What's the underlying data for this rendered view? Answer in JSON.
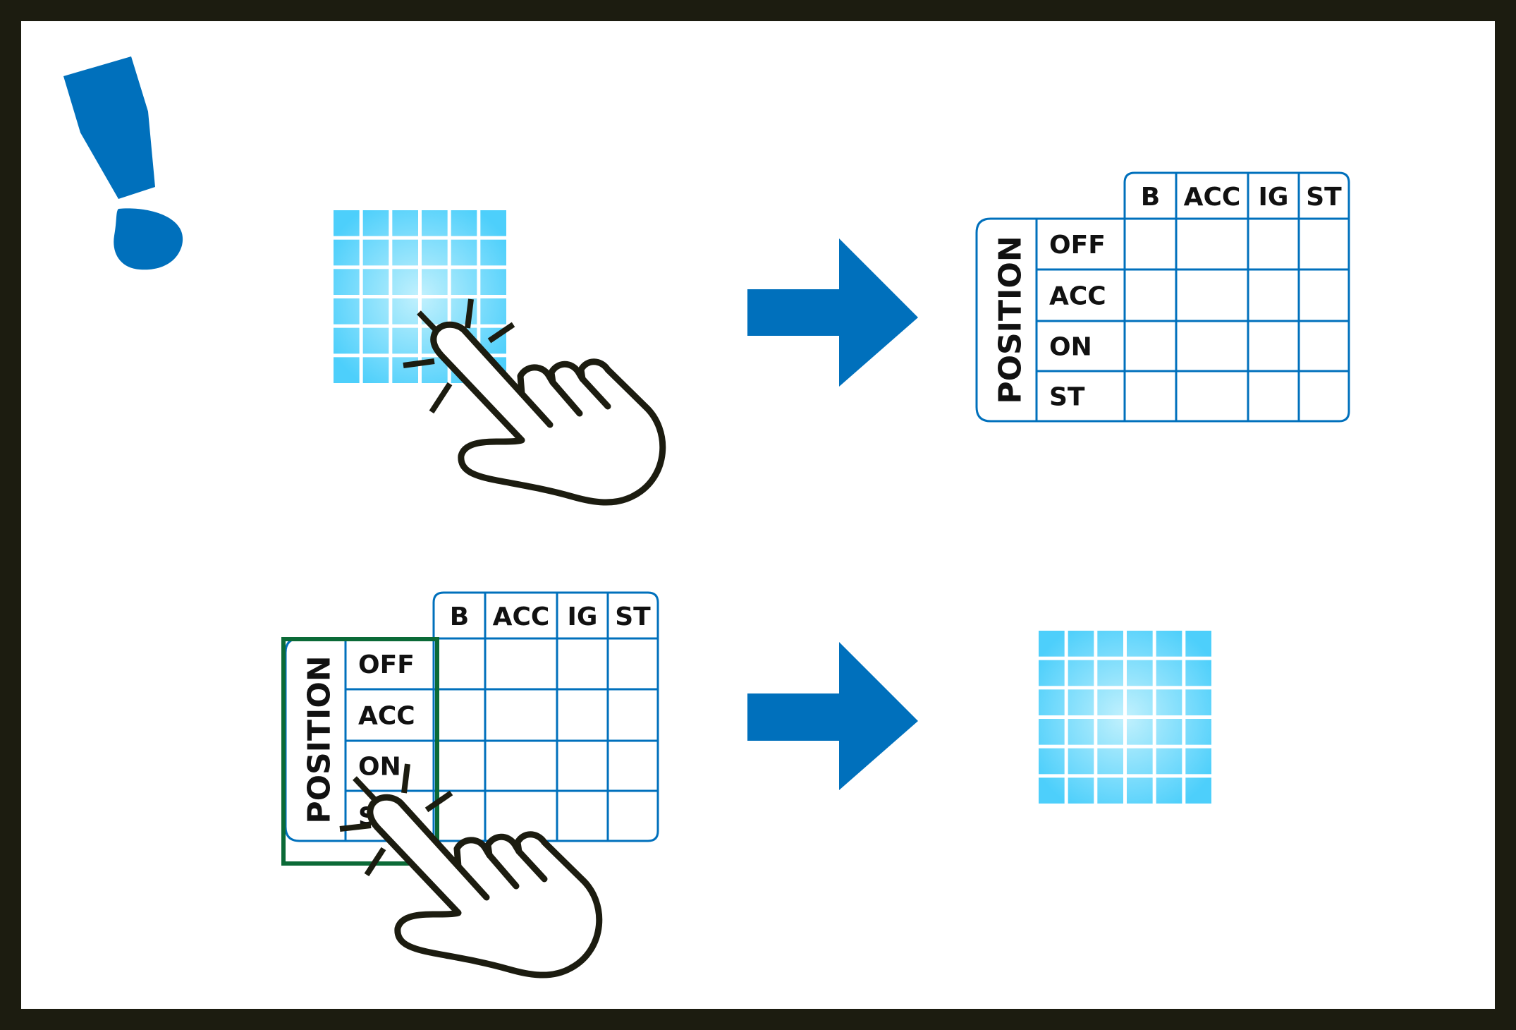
{
  "colors": {
    "frame": "#1c1c10",
    "accent": "#0070bc",
    "grid_tile_edge": "#4dcffb",
    "grid_tile_center": "#c2f1fd",
    "highlight_frame": "#0b6a37",
    "ink": "#111111"
  },
  "icons": {
    "warning": "exclamation-icon",
    "touch": "tap-hand-icon",
    "next": "arrow-right-icon",
    "menu": "tile-grid-icon"
  },
  "table_top": {
    "row_group_label": "POSITION",
    "columns": [
      "B",
      "ACC",
      "IG",
      "ST"
    ],
    "rows": [
      "OFF",
      "ACC",
      "ON",
      "ST"
    ]
  },
  "table_bottom": {
    "row_group_label": "POSITION",
    "columns": [
      "B",
      "ACC",
      "IG",
      "ST"
    ],
    "rows": [
      "OFF",
      "ACC",
      "ON",
      "ST"
    ]
  }
}
